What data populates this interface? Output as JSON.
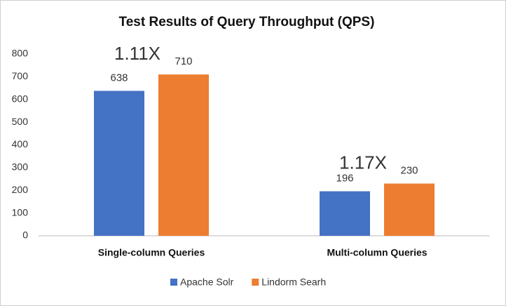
{
  "chart_data": {
    "type": "bar",
    "title": "Test Results of Query Throughput (QPS)",
    "categories": [
      "Single-column Queries",
      "Multi-column Queries"
    ],
    "series": [
      {
        "name": "Apache Solr",
        "color": "#4472c4",
        "values": [
          638,
          196
        ]
      },
      {
        "name": "Lindorm Searh",
        "color": "#ed7d31",
        "values": [
          710,
          230
        ]
      }
    ],
    "annotations": [
      "1.11X",
      "1.17X"
    ],
    "annotation_color": "#e8202a",
    "ylim": [
      0,
      800
    ],
    "yticks": [
      0,
      100,
      200,
      300,
      400,
      500,
      600,
      700,
      800
    ],
    "grid": false,
    "legend": "bottom"
  }
}
